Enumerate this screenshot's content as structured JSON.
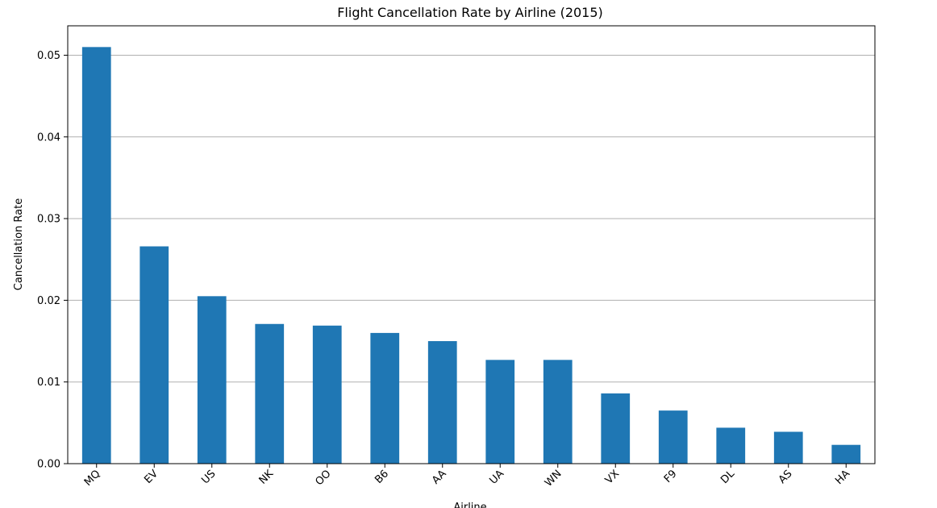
{
  "chart_data": {
    "type": "bar",
    "title": "Flight Cancellation Rate by Airline (2015)",
    "xlabel": "Airline",
    "ylabel": "Cancellation Rate",
    "categories": [
      "MQ",
      "EV",
      "US",
      "NK",
      "OO",
      "B6",
      "AA",
      "UA",
      "WN",
      "VX",
      "F9",
      "DL",
      "AS",
      "HA"
    ],
    "values": [
      0.051,
      0.0266,
      0.0205,
      0.0171,
      0.0169,
      0.016,
      0.015,
      0.0127,
      0.0127,
      0.0086,
      0.0065,
      0.0044,
      0.0039,
      0.0023
    ],
    "ylim": [
      0,
      0.0536
    ],
    "yticks": [
      0.0,
      0.01,
      0.02,
      0.03,
      0.04,
      0.05
    ],
    "ytick_labels": [
      "0.00",
      "0.01",
      "0.02",
      "0.03",
      "0.04",
      "0.05"
    ],
    "grid": "y-major",
    "colors": {
      "bar": "#1f77b4",
      "grid": "#b0b0b0",
      "axis": "#000000"
    }
  }
}
